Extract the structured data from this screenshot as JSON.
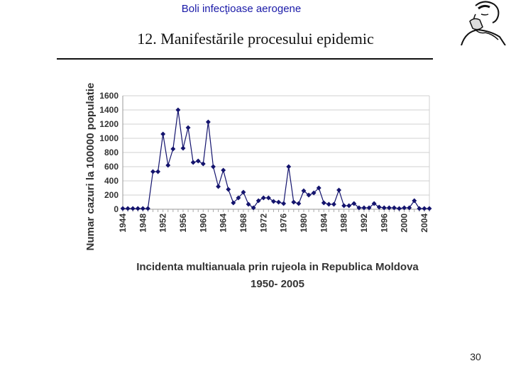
{
  "header": {
    "title": "Boli infecţioase aerogene"
  },
  "slide": {
    "title": "12. Manifestările procesului epidemic",
    "page_number": "30"
  },
  "logo": {
    "icon": "thinking-man-sketch-icon"
  },
  "chart_data": {
    "type": "line",
    "title_line1": "Incidenta multianuala prin rujeola in Republica Moldova",
    "title_line2": "1950- 2005",
    "xlabel": "",
    "ylabel": "Numar cazuri la 100000 populatie",
    "ylim": [
      0,
      1600
    ],
    "yticks": [
      0,
      200,
      400,
      600,
      800,
      1000,
      1200,
      1400,
      1600
    ],
    "xlim": [
      1944,
      2005
    ],
    "xticks": [
      1944,
      1948,
      1952,
      1956,
      1960,
      1964,
      1968,
      1972,
      1976,
      1980,
      1984,
      1988,
      1992,
      1996,
      2000,
      2004
    ],
    "grid": true,
    "line_color": "#14146e",
    "series": [
      {
        "name": "Incidenta",
        "x": [
          1944,
          1945,
          1946,
          1947,
          1948,
          1949,
          1950,
          1951,
          1952,
          1953,
          1954,
          1955,
          1956,
          1957,
          1958,
          1959,
          1960,
          1961,
          1962,
          1963,
          1964,
          1965,
          1966,
          1967,
          1968,
          1969,
          1970,
          1971,
          1972,
          1973,
          1974,
          1975,
          1976,
          1977,
          1978,
          1979,
          1980,
          1981,
          1982,
          1983,
          1984,
          1985,
          1986,
          1987,
          1988,
          1989,
          1990,
          1991,
          1992,
          1993,
          1994,
          1995,
          1996,
          1997,
          1998,
          1999,
          2000,
          2001,
          2002,
          2003,
          2004,
          2005
        ],
        "y": [
          10,
          10,
          10,
          10,
          10,
          10,
          530,
          530,
          1060,
          620,
          850,
          1400,
          860,
          1150,
          660,
          680,
          640,
          1230,
          600,
          320,
          550,
          280,
          90,
          160,
          240,
          70,
          20,
          120,
          160,
          160,
          110,
          100,
          80,
          600,
          100,
          80,
          260,
          200,
          230,
          300,
          90,
          70,
          70,
          270,
          50,
          50,
          80,
          20,
          20,
          20,
          80,
          30,
          20,
          20,
          20,
          10,
          20,
          20,
          120,
          10,
          10,
          10
        ]
      }
    ]
  }
}
